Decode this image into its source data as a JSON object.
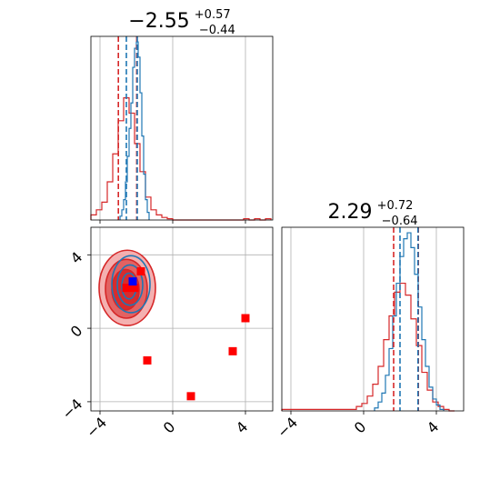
{
  "chart_data": [
    {
      "panel": "marginal-1",
      "type": "histogram",
      "title": {
        "value": "−2.55",
        "upper": "+0.57",
        "lower": "−0.44"
      },
      "xlim": [
        -4.5,
        5.5
      ],
      "grid": true,
      "series": [
        {
          "color": "#d62728",
          "bins": [
            -4.5,
            -4.2,
            -3.9,
            -3.6,
            -3.3,
            -3.0,
            -2.7,
            -2.4,
            -2.1,
            -1.8,
            -1.5,
            -1.2,
            -0.9,
            -0.6,
            -0.3,
            0.0,
            0.3,
            0.6,
            0.9,
            1.2,
            1.5,
            1.8,
            2.1,
            2.4,
            2.7,
            3.0,
            3.3,
            3.6,
            3.9,
            4.2,
            4.5,
            4.8,
            5.1,
            5.4
          ],
          "counts": [
            4,
            8,
            14,
            30,
            52,
            78,
            96,
            84,
            60,
            38,
            18,
            8,
            4,
            2,
            1,
            0,
            0,
            0,
            0,
            0,
            0,
            0,
            0,
            0,
            0,
            0,
            0,
            0,
            1,
            0,
            1,
            0,
            1
          ]
        },
        {
          "color": "#1f77b4",
          "bins": [
            -2.9,
            -2.8,
            -2.7,
            -2.6,
            -2.5,
            -2.4,
            -2.3,
            -2.2,
            -2.1,
            -2.0,
            -1.9,
            -1.8,
            -1.7,
            -1.6,
            -1.5,
            -1.4,
            -1.3
          ],
          "counts": [
            3,
            8,
            16,
            30,
            50,
            72,
            92,
            120,
            135,
            140,
            128,
            100,
            66,
            36,
            16,
            6
          ]
        }
      ],
      "quantile_lines": [
        {
          "x": -2.99,
          "color": "#d62728"
        },
        {
          "x": -2.55,
          "color": "#1f77b4"
        },
        {
          "x": -1.98,
          "color": "#d62728"
        },
        {
          "x": -1.95,
          "color": "#1f77b4"
        }
      ]
    },
    {
      "panel": "marginal-2",
      "type": "histogram",
      "title": {
        "value": "2.29",
        "upper": "+0.72",
        "lower": "−0.64"
      },
      "xlim": [
        -4.5,
        5.5
      ],
      "grid": true,
      "series": [
        {
          "color": "#d62728",
          "bins": [
            -4.5,
            -0.4,
            -0.1,
            0.2,
            0.5,
            0.8,
            1.1,
            1.4,
            1.7,
            2.0,
            2.3,
            2.6,
            2.9,
            3.2,
            3.5,
            3.8,
            4.1,
            4.4,
            4.7,
            5.0
          ],
          "counts": [
            1,
            3,
            5,
            10,
            18,
            30,
            48,
            64,
            80,
            86,
            78,
            62,
            44,
            26,
            14,
            6,
            3,
            1,
            0
          ]
        },
        {
          "color": "#1f77b4",
          "bins": [
            0.6,
            0.8,
            1.0,
            1.2,
            1.4,
            1.6,
            1.8,
            2.0,
            2.2,
            2.4,
            2.6,
            2.8,
            3.0,
            3.2,
            3.4,
            3.6,
            3.8,
            4.0,
            4.2,
            4.4
          ],
          "counts": [
            2,
            6,
            12,
            24,
            42,
            64,
            86,
            104,
            116,
            120,
            110,
            92,
            70,
            48,
            30,
            16,
            8,
            4,
            1
          ]
        }
      ],
      "quantile_lines": [
        {
          "x": 1.65,
          "color": "#d62728"
        },
        {
          "x": 2.0,
          "color": "#1f77b4"
        },
        {
          "x": 3.01,
          "color": "#d62728"
        },
        {
          "x": 2.99,
          "color": "#1f77b4"
        }
      ]
    },
    {
      "panel": "joint",
      "type": "contour-scatter",
      "xlim": [
        -4.5,
        5.5
      ],
      "ylim": [
        -4.5,
        5.5
      ],
      "grid": true,
      "red_squares": [
        {
          "x": -1.75,
          "y": 3.1
        },
        {
          "x": -2.55,
          "y": 2.2
        },
        {
          "x": -2.1,
          "y": 2.2
        },
        {
          "x": -1.4,
          "y": -1.75
        },
        {
          "x": 1.0,
          "y": -3.7
        },
        {
          "x": 3.3,
          "y": -1.25
        },
        {
          "x": 4.0,
          "y": 0.55
        }
      ],
      "blue_square": {
        "x": -2.2,
        "y": 2.55
      },
      "red_contours": [
        {
          "cx": -2.5,
          "cy": 2.2,
          "rx": 1.55,
          "ry": 2.05,
          "fill": "#f3a7a7"
        },
        {
          "cx": -2.55,
          "cy": 2.15,
          "rx": 1.15,
          "ry": 1.6,
          "fill": "#e05a5a"
        },
        {
          "cx": -2.6,
          "cy": 2.1,
          "rx": 0.75,
          "ry": 1.1,
          "fill": "#d62728"
        }
      ],
      "blue_contours": [
        {
          "cx": -2.3,
          "cy": 2.4,
          "rx": 1.05,
          "ry": 1.55
        },
        {
          "cx": -2.35,
          "cy": 2.35,
          "rx": 0.7,
          "ry": 1.1
        },
        {
          "cx": -2.4,
          "cy": 2.3,
          "rx": 0.4,
          "ry": 0.7
        }
      ]
    }
  ],
  "ticks": {
    "values": [
      -4,
      0,
      4
    ],
    "labels": [
      "−4",
      "0",
      "4"
    ]
  },
  "colors": {
    "red": "#d62728",
    "blue": "#1f77b4",
    "square_red": "#ff0000",
    "square_blue": "#0000ff"
  }
}
